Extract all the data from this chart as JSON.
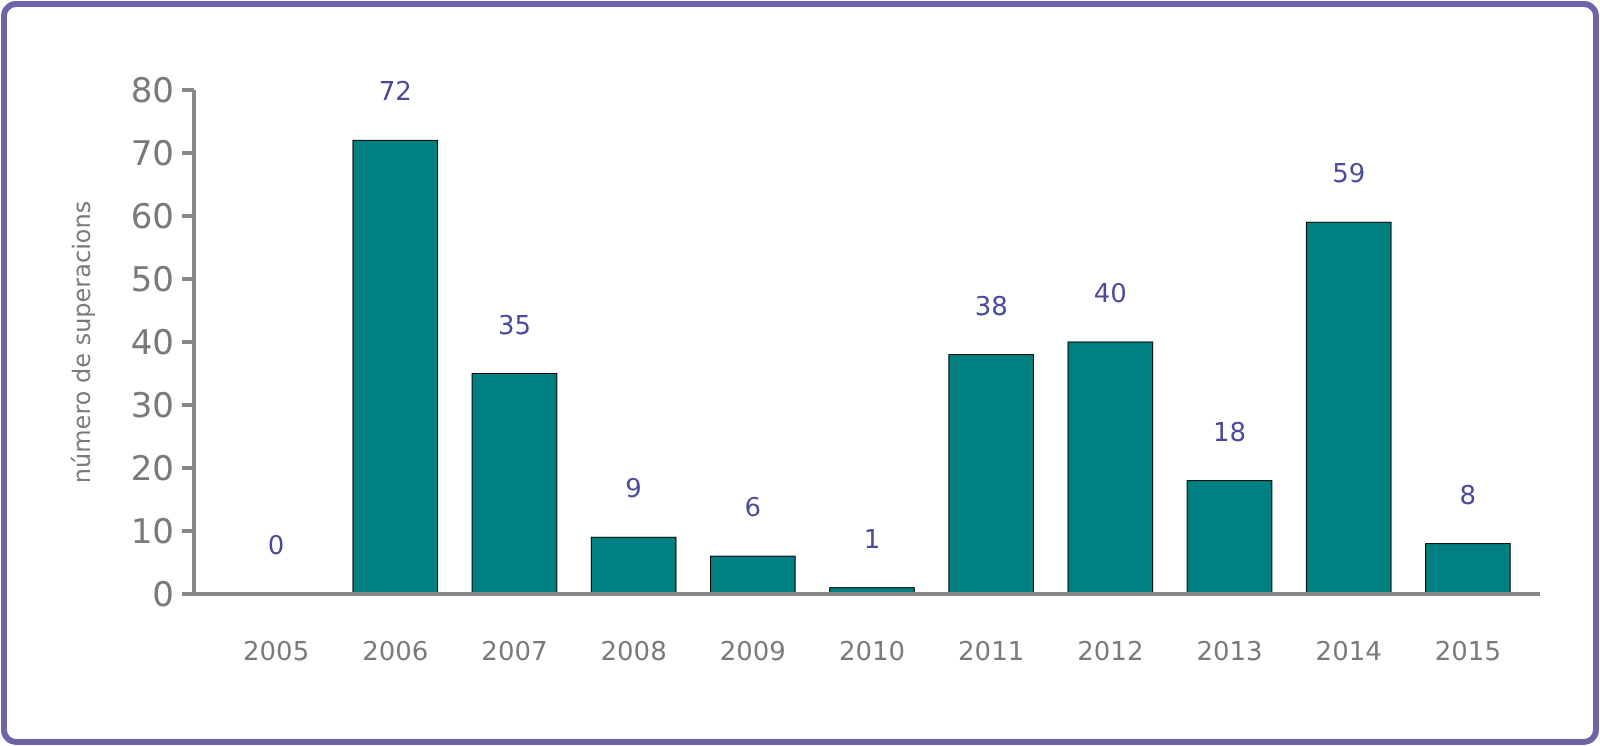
{
  "chart_data": {
    "type": "bar",
    "ylabel": "número de superacions",
    "categories": [
      "2005",
      "2006",
      "2007",
      "2008",
      "2009",
      "2010",
      "2011",
      "2012",
      "2013",
      "2014",
      "2015"
    ],
    "values": [
      0,
      72,
      35,
      9,
      6,
      1,
      38,
      40,
      18,
      59,
      8
    ],
    "color": "#008080",
    "ylim": [
      0,
      80
    ],
    "yticks": [
      0,
      10,
      20,
      30,
      40,
      50,
      60,
      70,
      80
    ],
    "grid": false,
    "data_labels": true
  }
}
